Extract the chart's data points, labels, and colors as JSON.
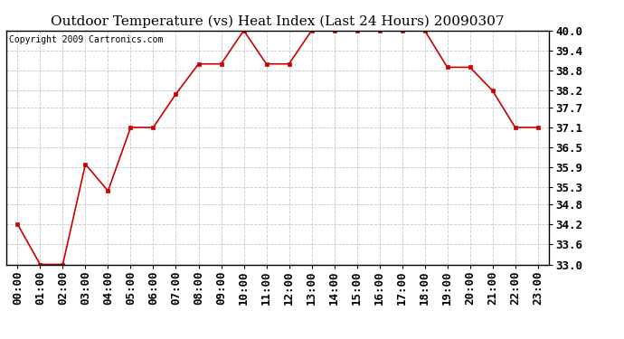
{
  "title": "Outdoor Temperature (vs) Heat Index (Last 24 Hours) 20090307",
  "copyright": "Copyright 2009 Cartronics.com",
  "x_labels": [
    "00:00",
    "01:00",
    "02:00",
    "03:00",
    "04:00",
    "05:00",
    "06:00",
    "07:00",
    "08:00",
    "09:00",
    "10:00",
    "11:00",
    "12:00",
    "13:00",
    "14:00",
    "15:00",
    "16:00",
    "17:00",
    "18:00",
    "19:00",
    "20:00",
    "21:00",
    "22:00",
    "23:00"
  ],
  "y_values": [
    34.2,
    33.0,
    33.0,
    36.0,
    35.2,
    37.1,
    37.1,
    38.1,
    39.0,
    39.0,
    40.0,
    39.0,
    39.0,
    40.0,
    40.0,
    40.0,
    40.0,
    40.0,
    40.0,
    38.9,
    38.9,
    38.2,
    37.1,
    37.1
  ],
  "line_color": "#cc0000",
  "marker": "s",
  "marker_size": 3,
  "ylim": [
    33.0,
    40.0
  ],
  "ytick_values": [
    33.0,
    33.6,
    34.2,
    34.8,
    35.3,
    35.9,
    36.5,
    37.1,
    37.7,
    38.2,
    38.8,
    39.4,
    40.0
  ],
  "ytick_labels": [
    "33.0",
    "33.6",
    "34.2",
    "34.8",
    "35.3",
    "35.9",
    "36.5",
    "37.1",
    "37.7",
    "38.2",
    "38.8",
    "39.4",
    "40.0"
  ],
  "background_color": "#ffffff",
  "grid_color": "#bbbbbb",
  "title_fontsize": 11,
  "tick_fontsize": 9,
  "copyright_fontsize": 7
}
